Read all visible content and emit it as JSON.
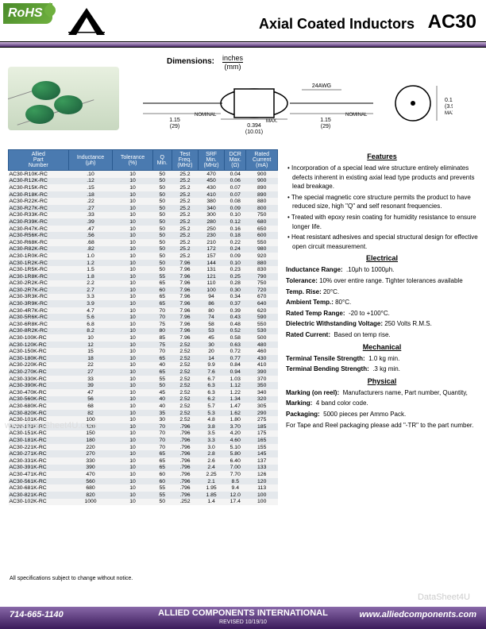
{
  "header": {
    "rohs": "RoHS",
    "title": "Axial Coated Inductors",
    "partcode": "AC30"
  },
  "dimensions": {
    "label": "Dimensions:",
    "unit_top": "inches",
    "unit_bot": "(mm)",
    "awg": "24AWG",
    "nominal": "NOMINAL",
    "max": "MAX.",
    "d1_in": "1.15",
    "d1_mm": "(29)",
    "d2_in": "0.394",
    "d2_mm": "(10.01)",
    "d3_in": "0.157",
    "d3_mm": "(3.99)"
  },
  "table": {
    "headers": [
      "Allied\nPart\nNumber",
      "Inductance\n(μh)",
      "Tolerance\n(%)",
      "Q\nMin.",
      "Test\nFreq.\n(MHz)",
      "SRF\nMin.\n(MHz)",
      "DCR\nMax.\n(Ω)",
      "Rated\nCurrent\n(mA)"
    ],
    "rows": [
      [
        "AC30-R10K-RC",
        ".10",
        "10",
        "50",
        "25.2",
        "470",
        "0.04",
        "900"
      ],
      [
        "AC30-R12K-RC",
        ".12",
        "10",
        "50",
        "25.2",
        "450",
        "0.06",
        "900"
      ],
      [
        "AC30-R15K-RC",
        ".15",
        "10",
        "50",
        "25.2",
        "430",
        "0.07",
        "890"
      ],
      [
        "AC30-R18K-RC",
        ".18",
        "10",
        "50",
        "25.2",
        "410",
        "0.07",
        "890"
      ],
      [
        "AC30-R22K-RC",
        ".22",
        "10",
        "50",
        "25.2",
        "380",
        "0.08",
        "880"
      ],
      [
        "AC30-R27K-RC",
        ".27",
        "10",
        "50",
        "25.2",
        "340",
        "0.09",
        "800"
      ],
      [
        "AC30-R33K-RC",
        ".33",
        "10",
        "50",
        "25.2",
        "300",
        "0.10",
        "750"
      ],
      [
        "AC30-R39K-RC",
        ".39",
        "10",
        "50",
        "25.2",
        "280",
        "0.12",
        "680"
      ],
      [
        "AC30-R47K-RC",
        ".47",
        "10",
        "50",
        "25.2",
        "250",
        "0.16",
        "650"
      ],
      [
        "AC30-R56K-RC",
        ".56",
        "10",
        "50",
        "25.2",
        "230",
        "0.18",
        "600"
      ],
      [
        "AC30-R68K-RC",
        ".68",
        "10",
        "50",
        "25.2",
        "210",
        "0.22",
        "550"
      ],
      [
        "AC30-R82K-RC",
        ".82",
        "10",
        "50",
        "25.2",
        "172",
        "0.24",
        "980"
      ],
      [
        "AC30-1R0K-RC",
        "1.0",
        "10",
        "50",
        "25.2",
        "157",
        "0.09",
        "920"
      ],
      [
        "AC30-1R2K-RC",
        "1.2",
        "10",
        "50",
        "7.96",
        "144",
        "0.10",
        "880"
      ],
      [
        "AC30-1R5K-RC",
        "1.5",
        "10",
        "50",
        "7.96",
        "131",
        "0.23",
        "830"
      ],
      [
        "AC30-1R8K-RC",
        "1.8",
        "10",
        "55",
        "7.96",
        "121",
        "0.25",
        "790"
      ],
      [
        "AC30-2R2K-RC",
        "2.2",
        "10",
        "65",
        "7.96",
        "110",
        "0.28",
        "750"
      ],
      [
        "AC30-2R7K-RC",
        "2.7",
        "10",
        "60",
        "7.96",
        "100",
        "0.30",
        "720"
      ],
      [
        "AC30-3R3K-RC",
        "3.3",
        "10",
        "65",
        "7.96",
        "94",
        "0.34",
        "670"
      ],
      [
        "AC30-3R9K-RC",
        "3.9",
        "10",
        "65",
        "7.96",
        "86",
        "0.37",
        "640"
      ],
      [
        "AC30-4R7K-RC",
        "4.7",
        "10",
        "70",
        "7.96",
        "80",
        "0.39",
        "620"
      ],
      [
        "AC30-5R6K-RC",
        "5.6",
        "10",
        "70",
        "7.96",
        "74",
        "0.43",
        "590"
      ],
      [
        "AC30-6R8K-RC",
        "6.8",
        "10",
        "75",
        "7.96",
        "58",
        "0.48",
        "550"
      ],
      [
        "AC30-8R2K-RC",
        "8.2",
        "10",
        "80",
        "7.96",
        "53",
        "0.52",
        "530"
      ],
      [
        "AC30-100K-RC",
        "10",
        "10",
        "85",
        "7.96",
        "45",
        "0.58",
        "500"
      ],
      [
        "AC30-120K-RC",
        "12",
        "10",
        "75",
        "2.52",
        "30",
        "0.63",
        "480"
      ],
      [
        "AC30-150K-RC",
        "15",
        "10",
        "70",
        "2.52",
        "20",
        "0.72",
        "460"
      ],
      [
        "AC30-180K-RC",
        "18",
        "10",
        "65",
        "2.52",
        "14",
        "0.77",
        "430"
      ],
      [
        "AC30-220K-RC",
        "22",
        "10",
        "40",
        "2.52",
        "9.9",
        "0.84",
        "410"
      ],
      [
        "AC30-270K-RC",
        "27",
        "10",
        "65",
        "2.52",
        "7.6",
        "0.94",
        "390"
      ],
      [
        "AC30-330K-RC",
        "33",
        "10",
        "55",
        "2.52",
        "6.7",
        "1.03",
        "370"
      ],
      [
        "AC30-390K-RC",
        "39",
        "10",
        "50",
        "2.52",
        "6.3",
        "1.12",
        "350"
      ],
      [
        "AC30-470K-RC",
        "47",
        "10",
        "45",
        "2.52",
        "6.3",
        "1.22",
        "340"
      ],
      [
        "AC30-560K-RC",
        "56",
        "10",
        "40",
        "2.52",
        "6.2",
        "1.34",
        "320"
      ],
      [
        "AC30-680K-RC",
        "68",
        "10",
        "40",
        "2.52",
        "5.7",
        "1.47",
        "305"
      ],
      [
        "AC30-820K-RC",
        "82",
        "10",
        "35",
        "2.52",
        "5.3",
        "1.62",
        "290"
      ],
      [
        "AC30-101K-RC",
        "100",
        "10",
        "30",
        "2.52",
        "4.8",
        "1.80",
        "275"
      ],
      [
        "AC30-121K-RC",
        "120",
        "10",
        "70",
        ".796",
        "3.8",
        "3.70",
        "185"
      ],
      [
        "AC30-151K-RC",
        "150",
        "10",
        "70",
        ".796",
        "3.5",
        "4.20",
        "175"
      ],
      [
        "AC30-181K-RC",
        "180",
        "10",
        "70",
        ".796",
        "3.3",
        "4.60",
        "165"
      ],
      [
        "AC30-221K-RC",
        "220",
        "10",
        "70",
        ".796",
        "3.0",
        "5.10",
        "155"
      ],
      [
        "AC30-271K-RC",
        "270",
        "10",
        "65",
        ".796",
        "2.8",
        "5.80",
        "145"
      ],
      [
        "AC30-331K-RC",
        "330",
        "10",
        "65",
        ".796",
        "2.6",
        "6.40",
        "137"
      ],
      [
        "AC30-391K-RC",
        "390",
        "10",
        "65",
        ".796",
        "2.4",
        "7.00",
        "133"
      ],
      [
        "AC30-471K-RC",
        "470",
        "10",
        "60",
        ".796",
        "2.25",
        "7.70",
        "126"
      ],
      [
        "AC30-561K-RC",
        "560",
        "10",
        "60",
        ".796",
        "2.1",
        "8.5",
        "120"
      ],
      [
        "AC30-681K-RC",
        "680",
        "10",
        "55",
        ".796",
        "1.95",
        "9.4",
        "113"
      ],
      [
        "AC30-821K-RC",
        "820",
        "10",
        "55",
        ".796",
        "1.85",
        "12.0",
        "100"
      ],
      [
        "AC30-102K-RC",
        "1000",
        "10",
        "50",
        ".252",
        "1.4",
        "17.4",
        "100"
      ]
    ]
  },
  "side": {
    "features_h": "Features",
    "features": [
      "Incorporation of a special lead wire structure entirely eliminates defects inherent in existing axial lead type products and prevents lead breakage.",
      "The special magnetic core structure permits the product to have reduced size, high \"Q\" and self resonant frequencies.",
      "Treated with epoxy resin coating for humidity resistance to ensure longer life.",
      "Heat resistant adhesives and special structural design for effective open circuit measurement."
    ],
    "electrical_h": "Electrical",
    "elec": {
      "ind_range_l": "Inductance Range:",
      "ind_range_v": ".10μh to 1000μh.",
      "tol_l": "Tolerance:",
      "tol_v": "10% over entire range. Tighter tolerances available",
      "temp_rise_l": "Temp. Rise:",
      "temp_rise_v": "20°C.",
      "amb_l": "Ambient Temp.:",
      "amb_v": "80°C.",
      "rtr_l": "Rated Temp Range:",
      "rtr_v": "-20 to +100°C.",
      "dwv_l": "Dielectric Withstanding Voltage:",
      "dwv_v": "250 Volts R.M.S.",
      "rc_l": "Rated Current:",
      "rc_v": "Based on temp rise."
    },
    "mech_h": "Mechanical",
    "mech": {
      "tts_l": "Terminal Tensile Strength:",
      "tts_v": "1.0 kg min.",
      "tbs_l": "Terminal Bending Strength:",
      "tbs_v": ".3 kg min."
    },
    "phys_h": "Physical",
    "phys": {
      "mark1_l": "Marking (on reel):",
      "mark1_v": "Manufacturers name, Part number, Quantity,",
      "mark2_l": "Marking:",
      "mark2_v": "4 band color code.",
      "pack_l": "Packaging:",
      "pack_v": "5000 pieces per Ammo Pack.",
      "tape": "For Tape and Reel packaging please add \"-TR\" to the part number."
    }
  },
  "footnote": "All specifications subject to change without notice.",
  "footer": {
    "phone": "714-665-1140",
    "company": "ALLIED COMPONENTS INTERNATIONAL",
    "rev": "REVISED 10/19/10",
    "url": "www.alliedcomponents.com"
  },
  "colors": {
    "th_bg": "#4a7ab0"
  }
}
